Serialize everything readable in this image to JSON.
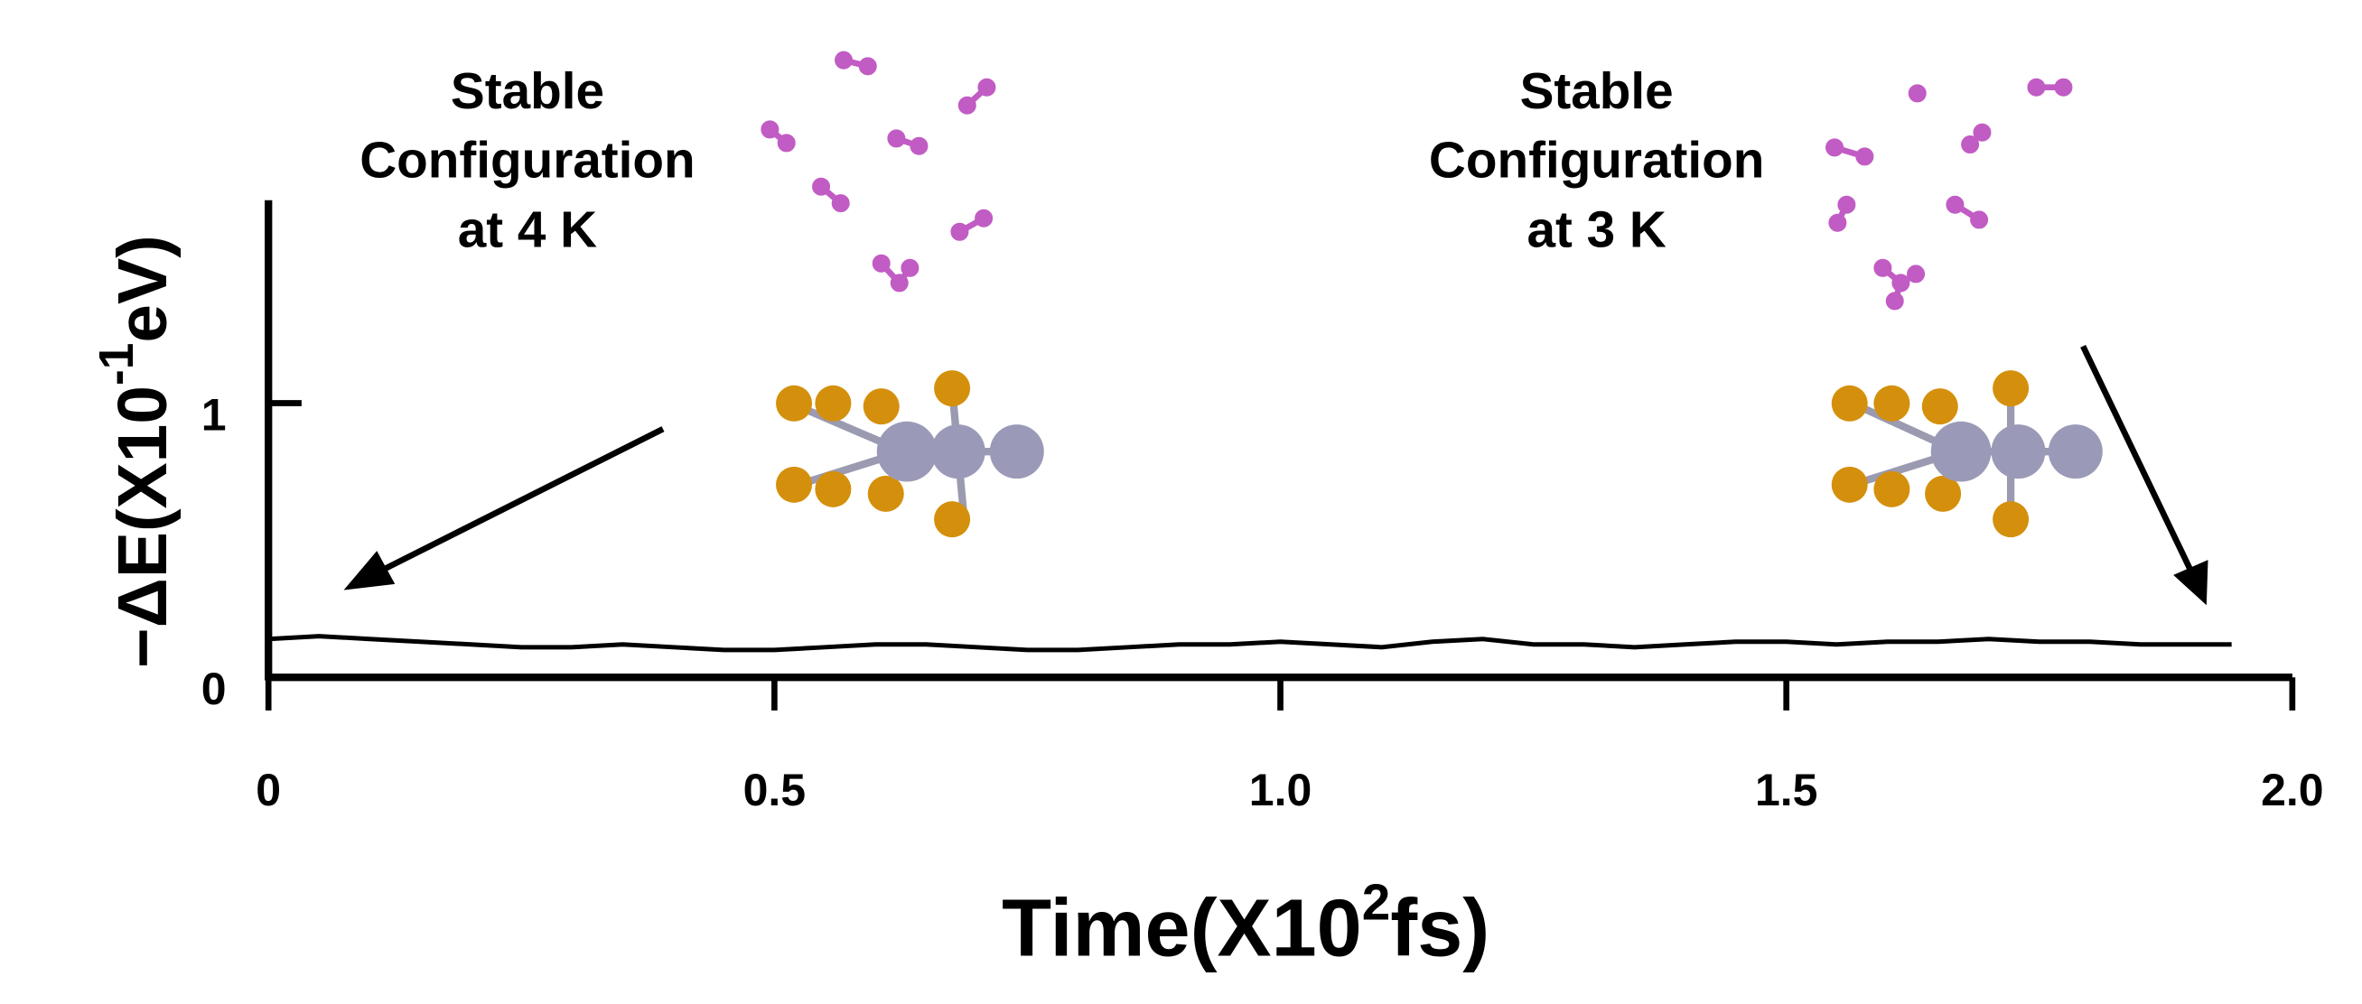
{
  "chart_data": {
    "type": "line",
    "xlabel": {
      "text": "Time(X10",
      "sup": "2",
      "tail": "fs)"
    },
    "ylabel": {
      "text": "−ΔE(X10",
      "sup": "-1",
      "tail": "eV)"
    },
    "annotations": [
      {
        "lines": [
          "Stable",
          "Configuration",
          "at 4 K"
        ]
      },
      {
        "lines": [
          "Stable",
          "Configuration",
          "at 3 K"
        ]
      }
    ],
    "xlim": [
      0,
      2
    ],
    "xticks": [
      0,
      0.5,
      {
        "value": 1,
        "label": "1.0"
      },
      1.5,
      {
        "value": 2,
        "label": "2.0"
      }
    ],
    "ylim": [
      0,
      1.74
    ],
    "yticks": [
      0,
      1
    ],
    "series": [
      {
        "color": "#000000",
        "x": [
          0,
          0.05,
          0.1,
          0.15,
          0.2,
          0.25,
          0.3,
          0.35,
          0.4,
          0.45,
          0.5,
          0.55,
          0.6,
          0.65,
          0.7,
          0.75,
          0.8,
          0.85,
          0.9,
          0.95,
          1,
          1.05,
          1.1,
          1.15,
          1.2,
          1.25,
          1.3,
          1.35,
          1.4,
          1.45,
          1.5,
          1.55,
          1.6,
          1.65,
          1.7,
          1.75,
          1.8,
          1.85,
          1.9,
          1.94
        ],
        "values": [
          0.14,
          0.15,
          0.14,
          0.13,
          0.12,
          0.11,
          0.11,
          0.12,
          0.11,
          0.1,
          0.1,
          0.11,
          0.12,
          0.12,
          0.11,
          0.1,
          0.1,
          0.11,
          0.12,
          0.12,
          0.13,
          0.12,
          0.11,
          0.13,
          0.14,
          0.12,
          0.12,
          0.11,
          0.12,
          0.13,
          0.13,
          0.12,
          0.13,
          0.13,
          0.14,
          0.13,
          0.13,
          0.12,
          0.12,
          0.12
        ]
      }
    ]
  }
}
